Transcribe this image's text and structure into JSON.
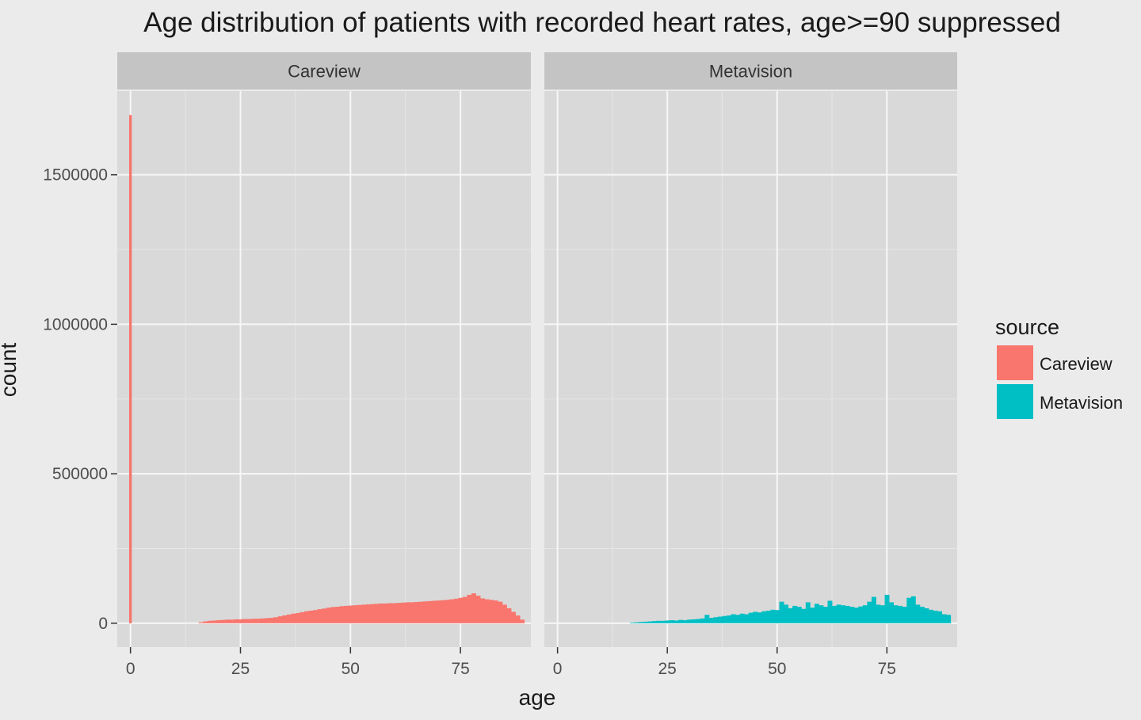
{
  "chart_data": {
    "type": "histogram",
    "title": "Age distribution of patients with recorded heart rates, age>=90 suppressed",
    "xlabel": "age",
    "ylabel": "count",
    "facets": [
      "Careview",
      "Metavision"
    ],
    "x_ticks": [
      0,
      25,
      50,
      75
    ],
    "y_ticks": [
      0,
      500000,
      1000000,
      1500000
    ],
    "y_tick_labels": [
      "0",
      "500000",
      "1000000",
      "1500000"
    ],
    "xlim": [
      -3,
      91
    ],
    "ylim": [
      -80000,
      1780000
    ],
    "binwidth": 1,
    "legend": {
      "title": "source",
      "position": "right",
      "entries": [
        {
          "name": "Careview",
          "color": "#f8766d"
        },
        {
          "name": "Metavision",
          "color": "#00bfc4"
        }
      ]
    },
    "series": [
      {
        "name": "Careview",
        "facet": "Careview",
        "color": "#f8766d",
        "x": [
          0,
          16,
          17,
          18,
          19,
          20,
          21,
          22,
          23,
          24,
          25,
          26,
          27,
          28,
          29,
          30,
          31,
          32,
          33,
          34,
          35,
          36,
          37,
          38,
          39,
          40,
          41,
          42,
          43,
          44,
          45,
          46,
          47,
          48,
          49,
          50,
          51,
          52,
          53,
          54,
          55,
          56,
          57,
          58,
          59,
          60,
          61,
          62,
          63,
          64,
          65,
          66,
          67,
          68,
          69,
          70,
          71,
          72,
          73,
          74,
          75,
          76,
          77,
          78,
          79,
          80,
          81,
          82,
          83,
          84,
          85,
          86,
          87,
          88,
          89
        ],
        "y": [
          1700000,
          3000,
          6000,
          8000,
          9000,
          10000,
          11000,
          12000,
          12000,
          13000,
          13000,
          14000,
          14000,
          15000,
          15000,
          16000,
          17000,
          18000,
          20000,
          23000,
          26000,
          29000,
          32000,
          34000,
          37000,
          40000,
          42000,
          44000,
          47000,
          49000,
          52000,
          54000,
          55000,
          57000,
          58000,
          59000,
          60000,
          61000,
          62000,
          63000,
          64000,
          65000,
          66000,
          66000,
          67000,
          67000,
          68000,
          69000,
          70000,
          70000,
          71000,
          72000,
          73000,
          74000,
          75000,
          76000,
          77000,
          78000,
          80000,
          82000,
          85000,
          88000,
          95000,
          100000,
          92000,
          83000,
          80000,
          78000,
          76000,
          72000,
          62000,
          50000,
          38000,
          26000,
          12000
        ]
      },
      {
        "name": "Metavision",
        "facet": "Metavision",
        "color": "#00bfc4",
        "x": [
          17,
          18,
          19,
          20,
          21,
          22,
          23,
          24,
          25,
          26,
          27,
          28,
          29,
          30,
          31,
          32,
          33,
          34,
          35,
          36,
          37,
          38,
          39,
          40,
          41,
          42,
          43,
          44,
          45,
          46,
          47,
          48,
          49,
          50,
          51,
          52,
          53,
          54,
          55,
          56,
          57,
          58,
          59,
          60,
          61,
          62,
          63,
          64,
          65,
          66,
          67,
          68,
          69,
          70,
          71,
          72,
          73,
          74,
          75,
          76,
          77,
          78,
          79,
          80,
          81,
          82,
          83,
          84,
          85,
          86,
          87,
          88,
          89
        ],
        "y": [
          2000,
          3000,
          4000,
          5000,
          6000,
          7000,
          8000,
          8000,
          9000,
          10000,
          9000,
          11000,
          10000,
          12000,
          13000,
          14000,
          16000,
          28000,
          18000,
          20000,
          22000,
          24000,
          26000,
          30000,
          28000,
          32000,
          30000,
          35000,
          38000,
          36000,
          40000,
          42000,
          45000,
          44000,
          72000,
          62000,
          50000,
          58000,
          55000,
          48000,
          70000,
          52000,
          65000,
          60000,
          55000,
          75000,
          58000,
          62000,
          60000,
          58000,
          55000,
          52000,
          56000,
          60000,
          72000,
          88000,
          62000,
          60000,
          95000,
          70000,
          60000,
          58000,
          55000,
          85000,
          90000,
          62000,
          55000,
          50000,
          45000,
          42000,
          40000,
          30000,
          28000
        ]
      }
    ]
  }
}
